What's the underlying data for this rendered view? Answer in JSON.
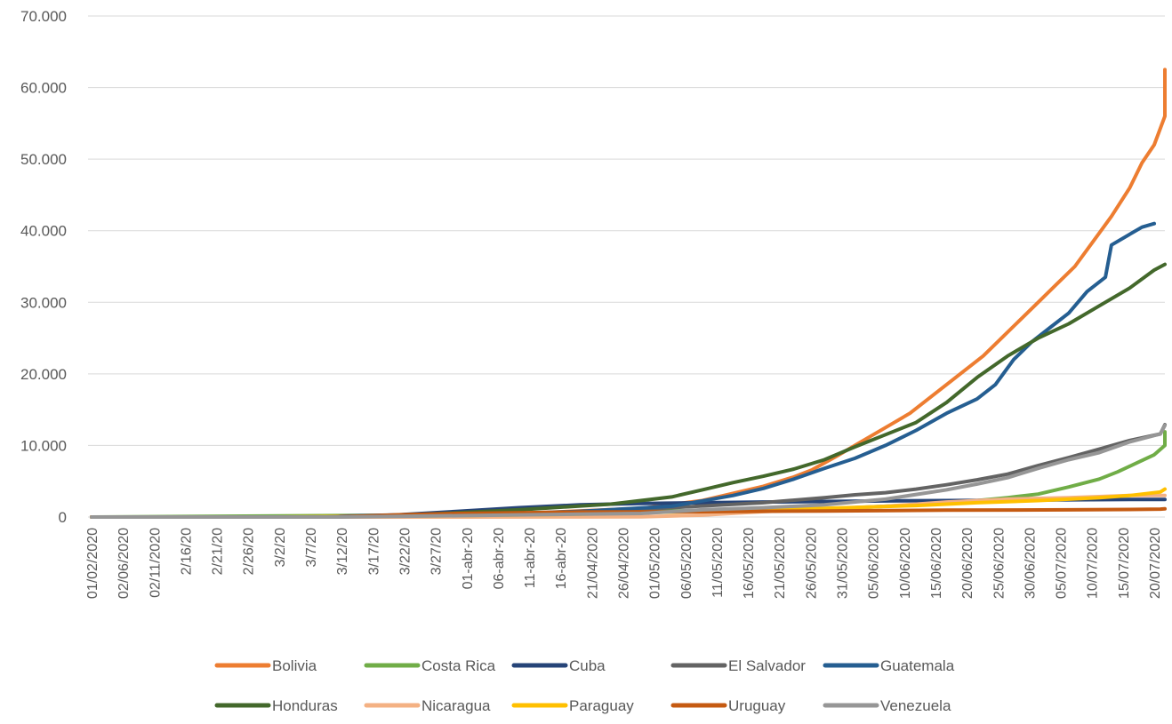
{
  "chart_data": {
    "type": "line",
    "title": "",
    "xlabel": "",
    "ylabel": "",
    "ylim": [
      0,
      70000
    ],
    "y_ticks": [
      0,
      10000,
      20000,
      30000,
      40000,
      50000,
      60000,
      70000
    ],
    "y_tick_labels": [
      "0",
      "10.000",
      "20.000",
      "30.000",
      "40.000",
      "50.000",
      "60.000",
      "70.000"
    ],
    "grid": "horizontal",
    "legend_position": "bottom",
    "x_tick_labels": [
      "01/02/2020",
      "02/06/2020",
      "02/11/2020",
      "2/16/20",
      "2/21/20",
      "2/26/20",
      "3/2/20",
      "3/7/20",
      "3/12/20",
      "3/17/20",
      "3/22/20",
      "3/27/20",
      "01-abr-20",
      "06-abr-20",
      "11-abr-20",
      "16-abr-20",
      "21/04/2020",
      "26/04/2020",
      "01/05/2020",
      "06/05/2020",
      "11/05/2020",
      "16/05/2020",
      "21/05/2020",
      "26/05/2020",
      "31/05/2020",
      "05/06/2020",
      "10/06/2020",
      "15/06/2020",
      "20/06/2020",
      "25/06/2020",
      "30/06/2020",
      "05/07/2020",
      "10/07/2020",
      "15/07/2020",
      "20/07/2020"
    ],
    "x_day_range": [
      0,
      174
    ],
    "series": [
      {
        "name": "Bolivia",
        "color": "#ED7D31",
        "points": [
          [
            0,
            0
          ],
          [
            40,
            0
          ],
          [
            55,
            200
          ],
          [
            70,
            500
          ],
          [
            90,
            1200
          ],
          [
            100,
            2300
          ],
          [
            105,
            3300
          ],
          [
            110,
            4300
          ],
          [
            115,
            5600
          ],
          [
            118,
            6600
          ],
          [
            122,
            8500
          ],
          [
            125,
            10000
          ],
          [
            128,
            11500
          ],
          [
            131,
            13000
          ],
          [
            134,
            14500
          ],
          [
            137,
            16500
          ],
          [
            140,
            18500
          ],
          [
            143,
            20500
          ],
          [
            146,
            22500
          ],
          [
            149,
            25000
          ],
          [
            152,
            27500
          ],
          [
            155,
            30000
          ],
          [
            158,
            32500
          ],
          [
            161,
            35000
          ],
          [
            164,
            38500
          ],
          [
            167,
            42000
          ],
          [
            170,
            46000
          ],
          [
            172,
            49500
          ],
          [
            174,
            52000
          ],
          [
            176,
            56000
          ],
          [
            178,
            59000
          ],
          [
            179,
            61000
          ],
          [
            180,
            62500
          ]
        ]
      },
      {
        "name": "Costa Rica",
        "color": "#70AD47",
        "points": [
          [
            0,
            0
          ],
          [
            60,
            300
          ],
          [
            90,
            800
          ],
          [
            120,
            1100
          ],
          [
            135,
            1700
          ],
          [
            140,
            1900
          ],
          [
            145,
            2300
          ],
          [
            150,
            2700
          ],
          [
            155,
            3200
          ],
          [
            160,
            4200
          ],
          [
            165,
            5300
          ],
          [
            168,
            6300
          ],
          [
            171,
            7500
          ],
          [
            174,
            8700
          ],
          [
            177,
            10000
          ],
          [
            180,
            11900
          ]
        ]
      },
      {
        "name": "Cuba",
        "color": "#264478",
        "points": [
          [
            0,
            0
          ],
          [
            35,
            0
          ],
          [
            50,
            300
          ],
          [
            60,
            800
          ],
          [
            70,
            1300
          ],
          [
            80,
            1700
          ],
          [
            90,
            1900
          ],
          [
            110,
            2100
          ],
          [
            130,
            2250
          ],
          [
            150,
            2350
          ],
          [
            170,
            2450
          ],
          [
            180,
            2450
          ]
        ]
      },
      {
        "name": "El Salvador",
        "color": "#636363",
        "points": [
          [
            0,
            0
          ],
          [
            50,
            0
          ],
          [
            65,
            100
          ],
          [
            80,
            700
          ],
          [
            95,
            1300
          ],
          [
            110,
            2000
          ],
          [
            120,
            2700
          ],
          [
            125,
            3100
          ],
          [
            130,
            3400
          ],
          [
            135,
            3900
          ],
          [
            140,
            4500
          ],
          [
            145,
            5200
          ],
          [
            150,
            6000
          ],
          [
            155,
            7200
          ],
          [
            160,
            8300
          ],
          [
            165,
            9500
          ],
          [
            170,
            10700
          ],
          [
            175,
            11600
          ],
          [
            180,
            12900
          ]
        ]
      },
      {
        "name": "Guatemala",
        "color": "#255E91",
        "points": [
          [
            0,
            0
          ],
          [
            40,
            0
          ],
          [
            60,
            200
          ],
          [
            80,
            800
          ],
          [
            95,
            1500
          ],
          [
            105,
            3000
          ],
          [
            110,
            4000
          ],
          [
            115,
            5300
          ],
          [
            120,
            6800
          ],
          [
            125,
            8200
          ],
          [
            130,
            10000
          ],
          [
            135,
            12100
          ],
          [
            140,
            14500
          ],
          [
            145,
            16500
          ],
          [
            148,
            18500
          ],
          [
            151,
            22000
          ],
          [
            154,
            24500
          ],
          [
            157,
            26500
          ],
          [
            160,
            28500
          ],
          [
            163,
            31500
          ],
          [
            166,
            33500
          ],
          [
            167,
            38000
          ],
          [
            170,
            39500
          ],
          [
            172,
            40500
          ],
          [
            174,
            41000
          ]
        ]
      },
      {
        "name": "Honduras",
        "color": "#43682B",
        "points": [
          [
            0,
            0
          ],
          [
            40,
            0
          ],
          [
            55,
            400
          ],
          [
            70,
            1000
          ],
          [
            85,
            1800
          ],
          [
            95,
            2800
          ],
          [
            100,
            3800
          ],
          [
            105,
            4800
          ],
          [
            110,
            5700
          ],
          [
            115,
            6700
          ],
          [
            120,
            8000
          ],
          [
            125,
            9800
          ],
          [
            130,
            11500
          ],
          [
            135,
            13200
          ],
          [
            140,
            16000
          ],
          [
            145,
            19500
          ],
          [
            150,
            22500
          ],
          [
            155,
            25000
          ],
          [
            160,
            27000
          ],
          [
            165,
            29500
          ],
          [
            170,
            32000
          ],
          [
            174,
            34500
          ],
          [
            176,
            35300
          ]
        ]
      },
      {
        "name": "Nicaragua",
        "color": "#F4B183",
        "points": [
          [
            0,
            0
          ],
          [
            60,
            0
          ],
          [
            80,
            10
          ],
          [
            90,
            25
          ],
          [
            100,
            260
          ],
          [
            110,
            760
          ],
          [
            120,
            1100
          ],
          [
            130,
            1500
          ],
          [
            140,
            2100
          ],
          [
            150,
            2500
          ],
          [
            160,
            2700
          ],
          [
            170,
            3000
          ],
          [
            180,
            3000
          ]
        ]
      },
      {
        "name": "Paraguay",
        "color": "#FFC000",
        "points": [
          [
            0,
            0
          ],
          [
            30,
            0
          ],
          [
            45,
            100
          ],
          [
            60,
            200
          ],
          [
            80,
            400
          ],
          [
            100,
            800
          ],
          [
            120,
            1200
          ],
          [
            135,
            1600
          ],
          [
            145,
            2000
          ],
          [
            155,
            2300
          ],
          [
            160,
            2500
          ],
          [
            165,
            2700
          ],
          [
            170,
            3000
          ],
          [
            175,
            3500
          ],
          [
            180,
            3900
          ]
        ]
      },
      {
        "name": "Uruguay",
        "color": "#C55A11",
        "points": [
          [
            0,
            0
          ],
          [
            40,
            0
          ],
          [
            50,
            300
          ],
          [
            60,
            500
          ],
          [
            80,
            700
          ],
          [
            100,
            750
          ],
          [
            120,
            850
          ],
          [
            140,
            950
          ],
          [
            160,
            1000
          ],
          [
            170,
            1050
          ],
          [
            175,
            1100
          ],
          [
            180,
            1150
          ]
        ]
      },
      {
        "name": "Venezuela",
        "color": "#969696",
        "points": [
          [
            0,
            0
          ],
          [
            40,
            0
          ],
          [
            50,
            100
          ],
          [
            60,
            180
          ],
          [
            70,
            300
          ],
          [
            80,
            400
          ],
          [
            90,
            500
          ],
          [
            100,
            1000
          ],
          [
            110,
            1300
          ],
          [
            120,
            1700
          ],
          [
            130,
            2500
          ],
          [
            140,
            3800
          ],
          [
            145,
            4600
          ],
          [
            150,
            5500
          ],
          [
            155,
            6800
          ],
          [
            160,
            8000
          ],
          [
            165,
            9000
          ],
          [
            170,
            10500
          ],
          [
            175,
            11600
          ],
          [
            180,
            12800
          ]
        ]
      }
    ]
  }
}
